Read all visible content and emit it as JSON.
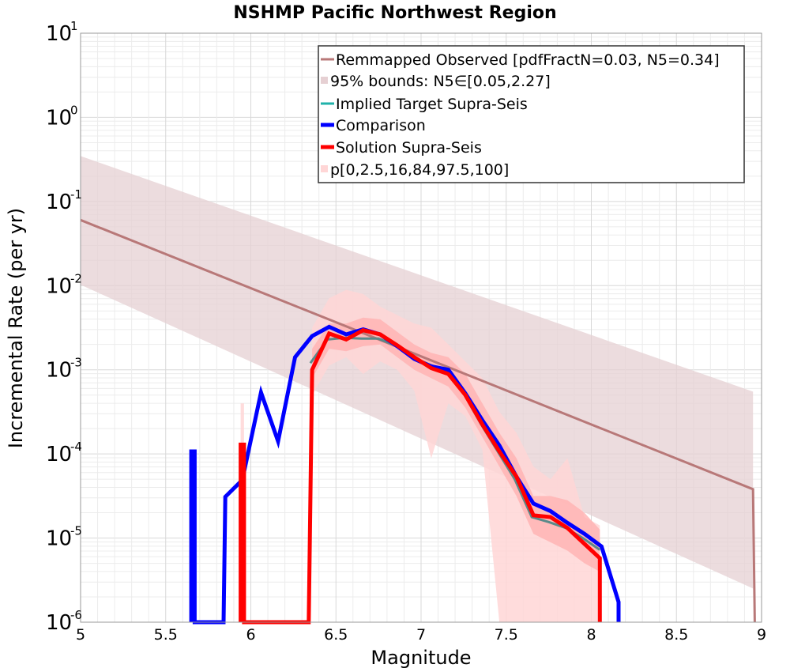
{
  "chart_data": {
    "type": "line",
    "title": "NSHMP Pacific Northwest Region",
    "xlabel": "Magnitude",
    "ylabel": "Incremental Rate (per yr)",
    "xlim": [
      5,
      9
    ],
    "ylim_log10": [
      -6,
      1
    ],
    "y_scale": "log",
    "grid": true,
    "legend_position": "top-right",
    "x_ticks": [
      "5",
      "5.5",
      "6",
      "6.5",
      "7",
      "7.5",
      "8",
      "8.5",
      "9"
    ],
    "y_ticks": [
      {
        "base": "10",
        "exp": "1",
        "value": 1
      },
      {
        "base": "10",
        "exp": "0",
        "value": 0
      },
      {
        "base": "10",
        "exp": "-1",
        "value": -1
      },
      {
        "base": "10",
        "exp": "-2",
        "value": -2
      },
      {
        "base": "10",
        "exp": "-3",
        "value": -3
      },
      {
        "base": "10",
        "exp": "-4",
        "value": -4
      },
      {
        "base": "10",
        "exp": "-5",
        "value": -5
      },
      {
        "base": "10",
        "exp": "-6",
        "value": -6
      }
    ],
    "legend": [
      "Remmapped Observed [pdfFractN=0.03, N5=0.34]",
      "95% bounds: N5∈[0.05,2.27]",
      "Implied Target Supra-Seis",
      "Comparison",
      "Solution Supra-Seis",
      "p[0,2.5,16,84,97.5,100]"
    ],
    "colors": {
      "observed": "#b87878",
      "observed_band": "#e6d0d3",
      "target": "#20b2aa",
      "target_drawn": "#5a8a8a",
      "comparison": "#0000ff",
      "solution": "#ff0000",
      "p_outer": "#ffd6d6",
      "p_mid": "#ffb2b2",
      "p_inner": "#ff8a8a"
    },
    "series": [
      {
        "name": "Remmapped Observed [pdfFractN=0.03, N5=0.34]",
        "x": [
          5.0,
          8.95,
          8.95,
          8.96
        ],
        "log10_y": [
          -1.22,
          -4.42,
          -4.42,
          -6.0
        ]
      },
      {
        "name": "95% bounds: N5∈[0.05,2.27]",
        "x": [
          5.0,
          8.95
        ],
        "log10_upper": [
          -0.46,
          -3.26
        ],
        "log10_lower": [
          -1.99,
          -5.6
        ]
      },
      {
        "name": "Implied Target Supra-Seis",
        "x": [
          6.35,
          6.45,
          6.55,
          6.65,
          6.75,
          6.85,
          6.95,
          7.05,
          7.15,
          7.25,
          7.35,
          7.45,
          7.55,
          7.65,
          7.75,
          7.85,
          7.95,
          8.05
        ],
        "log10_y": [
          -2.92,
          -2.64,
          -2.62,
          -2.63,
          -2.63,
          -2.71,
          -2.85,
          -2.94,
          -3.01,
          -3.28,
          -3.64,
          -3.97,
          -4.3,
          -4.75,
          -4.81,
          -4.88,
          -5.0,
          -5.14
        ]
      },
      {
        "name": "Comparison",
        "x": [
          5.65,
          5.65,
          5.67,
          5.67,
          5.84,
          5.85,
          5.95,
          6.06,
          6.16,
          6.26,
          6.36,
          6.46,
          6.56,
          6.66,
          6.76,
          6.86,
          6.96,
          7.06,
          7.16,
          7.26,
          7.36,
          7.46,
          7.56,
          7.66,
          7.76,
          7.86,
          7.96,
          8.06,
          8.16,
          8.16
        ],
        "log10_y": [
          -6.0,
          -3.97,
          -3.97,
          -6.0,
          -6.0,
          -4.51,
          -4.31,
          -3.27,
          -3.85,
          -2.85,
          -2.6,
          -2.49,
          -2.58,
          -2.52,
          -2.58,
          -2.72,
          -2.87,
          -2.96,
          -3.0,
          -3.28,
          -3.6,
          -3.9,
          -4.27,
          -4.59,
          -4.68,
          -4.82,
          -4.95,
          -5.1,
          -5.76,
          -6.0
        ]
      },
      {
        "name": "Solution Supra-Seis",
        "x": [
          5.94,
          5.94,
          5.96,
          5.96,
          6.34,
          6.36,
          6.46,
          6.56,
          6.66,
          6.76,
          6.86,
          6.96,
          7.06,
          7.16,
          7.26,
          7.36,
          7.46,
          7.56,
          7.66,
          7.76,
          7.86,
          7.96,
          8.05,
          8.05
        ],
        "log10_y": [
          -6.0,
          -3.89,
          -3.89,
          -6.0,
          -6.0,
          -3.0,
          -2.57,
          -2.64,
          -2.53,
          -2.58,
          -2.71,
          -2.85,
          -2.98,
          -3.05,
          -3.3,
          -3.65,
          -3.97,
          -4.27,
          -4.73,
          -4.75,
          -4.88,
          -5.07,
          -5.24,
          -6.0
        ]
      },
      {
        "name": "p[0,2.5,16,84,97.5,100]",
        "x": [
          6.36,
          6.46,
          6.56,
          6.66,
          6.76,
          6.86,
          6.96,
          7.06,
          7.16,
          7.26,
          7.36,
          7.46,
          7.56,
          7.66,
          7.76,
          7.86,
          7.96,
          8.05
        ],
        "log10_p0": [
          -3.3,
          -2.95,
          -2.85,
          -3.05,
          -2.9,
          -3.0,
          -3.25,
          -4.05,
          -3.4,
          -3.55,
          -3.95,
          -6.0,
          -6.0,
          -6.0,
          -6.0,
          -6.0,
          -6.0,
          -6.0
        ],
        "log10_p16": [
          -3.1,
          -2.75,
          -2.78,
          -2.72,
          -2.7,
          -2.85,
          -3.0,
          -3.1,
          -3.2,
          -3.45,
          -3.8,
          -4.15,
          -4.5,
          -4.95,
          -5.05,
          -5.15,
          -5.3,
          -5.4
        ],
        "log10_p84": [
          -2.75,
          -2.45,
          -2.45,
          -2.38,
          -2.4,
          -2.55,
          -2.7,
          -2.8,
          -2.85,
          -3.05,
          -3.4,
          -3.75,
          -4.05,
          -4.5,
          -4.5,
          -4.55,
          -4.7,
          -4.9
        ],
        "log10_p100": [
          -2.5,
          -2.15,
          -2.05,
          -2.1,
          -2.25,
          -2.35,
          -2.45,
          -2.5,
          -2.7,
          -2.9,
          -3.1,
          -3.5,
          -3.75,
          -4.15,
          -4.3,
          -4.05,
          -4.75,
          -4.85
        ]
      }
    ]
  }
}
